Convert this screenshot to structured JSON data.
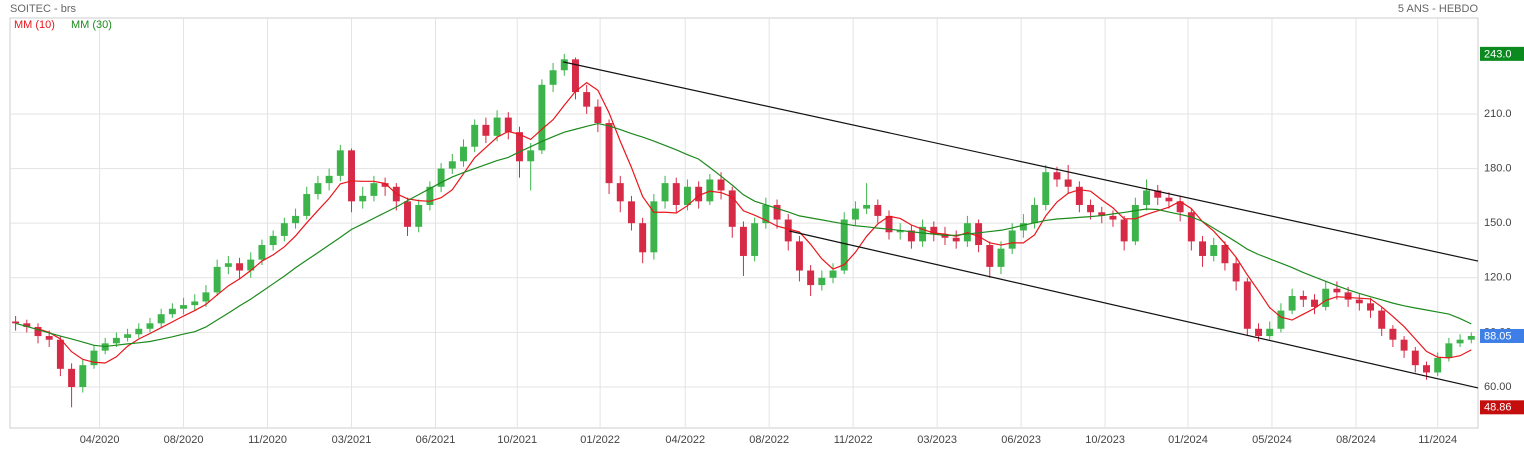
{
  "chart_data": {
    "type": "candlestick",
    "title": "SOITEC - brs",
    "subtitle": "5 ANS - HEBDO",
    "xlim": [
      -0.5,
      130.6
    ],
    "ylim": [
      37.5,
      262.7
    ],
    "grid": true,
    "legend": "top-left",
    "up_color": "#3cb44b",
    "down_color": "#d62a46",
    "xticks": [
      {
        "value": 7.5,
        "label": "04/2020"
      },
      {
        "value": 15.0,
        "label": "08/2020"
      },
      {
        "value": 22.5,
        "label": "11/2020"
      },
      {
        "value": 30.0,
        "label": "03/2021"
      },
      {
        "value": 37.5,
        "label": "06/2021"
      },
      {
        "value": 44.8,
        "label": "10/2021"
      },
      {
        "value": 52.2,
        "label": "01/2022"
      },
      {
        "value": 59.8,
        "label": "04/2022"
      },
      {
        "value": 67.3,
        "label": "08/2022"
      },
      {
        "value": 74.8,
        "label": "11/2022"
      },
      {
        "value": 82.3,
        "label": "03/2023"
      },
      {
        "value": 89.8,
        "label": "06/2023"
      },
      {
        "value": 97.3,
        "label": "10/2023"
      },
      {
        "value": 104.7,
        "label": "01/2024"
      },
      {
        "value": 112.2,
        "label": "05/2024"
      },
      {
        "value": 119.7,
        "label": "08/2024"
      },
      {
        "value": 127.0,
        "label": "11/2024"
      }
    ],
    "yticks": [
      {
        "value": 60,
        "label": "60.00"
      },
      {
        "value": 90,
        "label": "90.00"
      },
      {
        "value": 120,
        "label": "120.0"
      },
      {
        "value": 150,
        "label": "150.0"
      },
      {
        "value": 180,
        "label": "180.0"
      },
      {
        "value": 210,
        "label": "210.0"
      }
    ],
    "price_tags": [
      {
        "value": 243,
        "label": "243.0",
        "color": "#0b8a1f"
      },
      {
        "value": 88.05,
        "label": "88.05",
        "color": "#3d7fe6"
      },
      {
        "value": 48.86,
        "label": "48.86",
        "color": "#c40d0d"
      }
    ],
    "open": [
      96,
      95,
      93,
      88,
      86,
      70,
      60,
      72,
      80,
      84,
      87,
      89,
      92,
      95,
      100,
      103,
      105,
      107,
      112,
      126,
      128,
      124,
      130,
      138,
      143,
      150,
      154,
      166,
      172,
      176,
      190,
      162,
      165,
      172,
      170,
      162,
      148,
      160,
      170,
      180,
      184,
      192,
      204,
      198,
      208,
      200,
      184,
      190,
      226,
      234,
      240,
      222,
      214,
      205,
      172,
      162,
      150,
      134,
      162,
      172,
      160,
      170,
      162,
      174,
      168,
      148,
      132,
      150,
      160,
      152,
      140,
      124,
      116,
      120,
      124,
      152,
      158,
      160,
      154,
      145,
      146,
      140,
      148,
      144,
      142,
      140,
      150,
      138,
      126,
      136,
      146,
      150,
      160,
      178,
      174,
      170,
      160,
      156,
      154,
      152,
      140,
      160,
      168,
      164,
      162,
      156,
      140,
      132,
      138,
      128,
      118,
      92,
      88,
      92,
      102,
      110,
      108,
      104,
      114,
      112,
      108,
      106,
      102,
      92,
      86,
      80,
      72,
      68,
      76,
      84,
      86
    ],
    "high": [
      99,
      97,
      95,
      91,
      88,
      73,
      75,
      83,
      87,
      90,
      92,
      95,
      98,
      103,
      106,
      109,
      111,
      116,
      130,
      132,
      131,
      134,
      141,
      146,
      153,
      158,
      170,
      176,
      180,
      193,
      191,
      170,
      176,
      175,
      172,
      164,
      163,
      173,
      183,
      188,
      196,
      207,
      208,
      212,
      211,
      203,
      194,
      229,
      238,
      243,
      241,
      226,
      218,
      207,
      176,
      165,
      153,
      166,
      176,
      175,
      174,
      173,
      177,
      178,
      170,
      151,
      153,
      164,
      163,
      155,
      143,
      127,
      124,
      128,
      156,
      162,
      172,
      163,
      157,
      150,
      149,
      152,
      151,
      148,
      146,
      154,
      152,
      140,
      140,
      150,
      155,
      164,
      182,
      181,
      182,
      173,
      163,
      159,
      157,
      154,
      164,
      174,
      171,
      167,
      165,
      158,
      143,
      142,
      140,
      131,
      120,
      95,
      96,
      106,
      114,
      113,
      111,
      118,
      118,
      115,
      111,
      109,
      104,
      94,
      88,
      82,
      74,
      79,
      87,
      89,
      90
    ],
    "low": [
      91,
      90,
      84,
      82,
      66,
      48.86,
      57,
      70,
      78,
      82,
      85,
      87,
      90,
      93,
      98,
      100,
      102,
      104,
      110,
      122,
      119,
      120,
      127,
      135,
      140,
      147,
      152,
      163,
      168,
      173,
      156,
      158,
      162,
      165,
      157,
      143,
      145,
      157,
      167,
      177,
      181,
      189,
      194,
      195,
      196,
      175,
      168,
      188,
      222,
      231,
      218,
      210,
      200,
      166,
      156,
      146,
      128,
      130,
      158,
      156,
      157,
      158,
      160,
      163,
      142,
      121,
      129,
      147,
      147,
      135,
      118,
      110,
      113,
      117,
      122,
      149,
      155,
      150,
      141,
      141,
      136,
      137,
      140,
      138,
      136,
      137,
      134,
      120,
      122,
      133,
      142,
      147,
      157,
      170,
      166,
      156,
      152,
      150,
      148,
      135,
      138,
      157,
      160,
      158,
      151,
      135,
      126,
      129,
      124,
      113,
      88,
      85,
      86,
      90,
      100,
      104,
      100,
      102,
      108,
      104,
      102,
      98,
      88,
      82,
      76,
      68,
      64,
      66,
      74,
      82,
      84
    ],
    "close": [
      95,
      93,
      88,
      86,
      70,
      60,
      72,
      80,
      84,
      87,
      89,
      92,
      95,
      100,
      103,
      105,
      107,
      112,
      126,
      128,
      124,
      130,
      138,
      143,
      150,
      154,
      166,
      172,
      176,
      190,
      162,
      165,
      172,
      170,
      162,
      148,
      160,
      170,
      180,
      184,
      192,
      204,
      198,
      208,
      200,
      184,
      190,
      226,
      234,
      240,
      222,
      214,
      205,
      172,
      162,
      150,
      134,
      162,
      172,
      160,
      170,
      162,
      174,
      168,
      148,
      132,
      150,
      160,
      152,
      140,
      124,
      116,
      120,
      124,
      152,
      158,
      160,
      154,
      145,
      146,
      140,
      148,
      144,
      142,
      140,
      150,
      138,
      126,
      136,
      146,
      150,
      160,
      178,
      174,
      170,
      160,
      156,
      154,
      152,
      140,
      160,
      168,
      164,
      162,
      156,
      140,
      132,
      138,
      128,
      118,
      92,
      88,
      92,
      102,
      110,
      108,
      104,
      114,
      112,
      108,
      106,
      102,
      92,
      86,
      80,
      72,
      68,
      76,
      84,
      86,
      88.05
    ],
    "series": [
      {
        "name": "MM (10)",
        "color": "#e8161b",
        "values": [
          null,
          null,
          92,
          90,
          86.4,
          79.4,
          75.2,
          73.6,
          73.2,
          76.6,
          82.4,
          86.4,
          89.4,
          92.6,
          95.8,
          99,
          102,
          105.4,
          110.6,
          115.6,
          119.4,
          124,
          129.2,
          132.6,
          137,
          143,
          150.2,
          157,
          163.6,
          171.6,
          173.2,
          173,
          173,
          171.8,
          166.2,
          163.4,
          162.4,
          162,
          164,
          168.4,
          177.2,
          186,
          191.6,
          197.2,
          200.4,
          198.8,
          196,
          201.6,
          206.8,
          214.8,
          222.4,
          227.2,
          223,
          210.6,
          195,
          180.6,
          164.6,
          156,
          156,
          155.6,
          159.6,
          165.2,
          167.6,
          166.8,
          164.4,
          156.8,
          154.4,
          151.6,
          148.4,
          146.8,
          145.2,
          138.4,
          130.4,
          124.8,
          127.2,
          134,
          142.8,
          149.6,
          153.8,
          152.6,
          149,
          146.6,
          144.6,
          144,
          142.8,
          144.8,
          142.8,
          139.2,
          138,
          139.2,
          139.2,
          143.6,
          154,
          161.6,
          166.4,
          168.4,
          167.6,
          162.8,
          158.4,
          152.4,
          152.4,
          154.8,
          156.8,
          158.8,
          162,
          158,
          150.8,
          145.6,
          138.8,
          131.2,
          121.6,
          112.8,
          103.6,
          98.4,
          96.8,
          100,
          103.2,
          107.6,
          109.6,
          109.2,
          108.8,
          108.4,
          104,
          98.8,
          93.2,
          86.4,
          79.6,
          76.4,
          76,
          77.2,
          80.4
        ]
      },
      {
        "name": "MM (30)",
        "color": "#1d8a1d",
        "values": [
          95,
          93.3,
          91.5,
          89.7,
          88,
          86.4,
          84.7,
          82.9,
          82.3,
          83,
          83.7,
          84.3,
          85,
          86.3,
          87.6,
          89.1,
          90.4,
          93,
          96.8,
          100.6,
          104.6,
          108.3,
          112.5,
          116.7,
          120.9,
          125.5,
          129.7,
          133.8,
          138,
          142.2,
          146.6,
          149.6,
          152.7,
          155.8,
          158.9,
          162.4,
          165.7,
          169,
          172.3,
          175.4,
          177.8,
          180,
          182.2,
          184.4,
          186.1,
          189.2,
          192,
          194.9,
          197.5,
          200,
          201.6,
          203.2,
          204.7,
          203.4,
          201.4,
          199.2,
          197.3,
          195.1,
          192.7,
          190.3,
          187.6,
          185.2,
          180.6,
          175.8,
          170.9,
          165.6,
          162.1,
          160.1,
          158.1,
          156.2,
          154,
          152.9,
          151.8,
          150.7,
          149.6,
          148.6,
          148,
          147.3,
          146.7,
          146,
          145.3,
          144.6,
          144,
          143.3,
          143.4,
          144.1,
          144.7,
          145.4,
          146.1,
          147.4,
          148.9,
          150.2,
          151.5,
          152.3,
          152.7,
          153.2,
          153.6,
          154.2,
          155.1,
          155.9,
          156.9,
          157.8,
          157.5,
          156.1,
          154.8,
          153.4,
          151,
          147.2,
          143.5,
          139.7,
          135.7,
          132.8,
          130.4,
          128,
          125.6,
          122.9,
          120.5,
          118.1,
          115.7,
          113.4,
          111.4,
          109.6,
          107.9,
          106.1,
          104.6,
          103.4,
          102.3,
          101.2,
          100.1,
          97.6,
          94.7
        ]
      }
    ],
    "trendlines": [
      {
        "x": [
          48.9,
          130.6
        ],
        "y": [
          238.6,
          129.2
        ],
        "color": "#111111"
      },
      {
        "x": [
          69.1,
          130.6
        ],
        "y": [
          145.7,
          59.5
        ],
        "color": "#111111"
      }
    ]
  }
}
